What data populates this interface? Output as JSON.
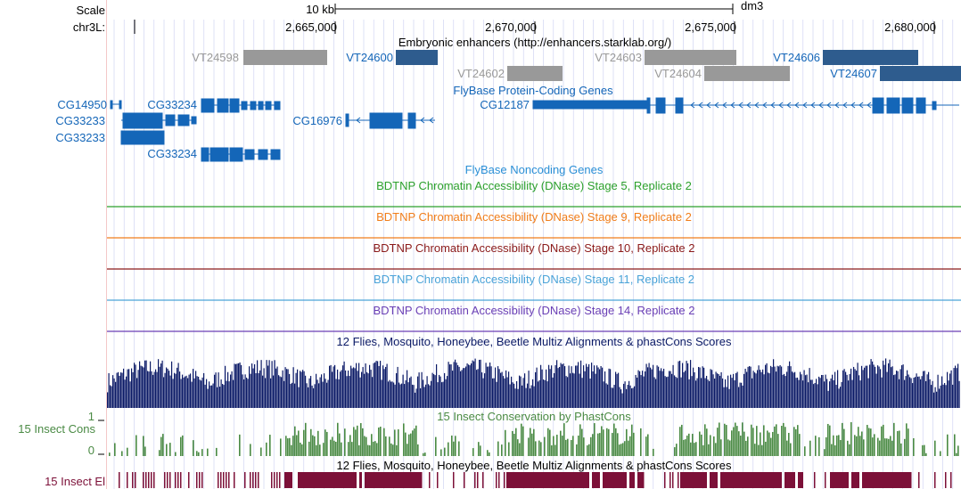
{
  "ruler": {
    "scale_label": "Scale",
    "chrom_label": "chr3L:",
    "scale_bar_text": "10 kb",
    "assembly": "dm3",
    "positions": [
      "2,665,000",
      "2,670,000",
      "2,675,000",
      "2,680,000"
    ]
  },
  "colors": {
    "gene": "#1466b8",
    "enhancer_dark": "#2e5c8e",
    "enhancer_gray": "#999999",
    "stage5": "#2ca02c",
    "stage9": "#f07d1a",
    "stage10": "#8b1a1a",
    "stage11": "#4aa3d8",
    "stage14": "#6a3fb5",
    "multiz": "#0b1a66",
    "phastcons": "#4a8a44",
    "elements": "#7c1038"
  },
  "tracks": {
    "enhancers": {
      "title": "Embryonic enhancers (http://enhancers.starklab.org/)",
      "items": [
        {
          "name": "VT24598",
          "style": "gray"
        },
        {
          "name": "VT24600",
          "style": "dark"
        },
        {
          "name": "VT24602",
          "style": "gray"
        },
        {
          "name": "VT24603",
          "style": "gray"
        },
        {
          "name": "VT24604",
          "style": "gray"
        },
        {
          "name": "VT24606",
          "style": "dark"
        },
        {
          "name": "VT24607",
          "style": "dark"
        }
      ]
    },
    "flybase_coding": {
      "title": "FlyBase Protein-Coding Genes",
      "genes": [
        "CG14950",
        "CG33234",
        "CG33233",
        "CG16976",
        "CG12187",
        "CG33233",
        "CG33234"
      ]
    },
    "flybase_noncoding": {
      "title": "FlyBase Noncoding Genes"
    },
    "dnase": [
      {
        "title": "BDTNP Chromatin Accessibility (DNase) Stage 5, Replicate 2",
        "color_key": "stage5"
      },
      {
        "title": "BDTNP Chromatin Accessibility (DNase) Stage 9, Replicate 2",
        "color_key": "stage9"
      },
      {
        "title": "BDTNP Chromatin Accessibility (DNase) Stage 10, Replicate 2",
        "color_key": "stage10"
      },
      {
        "title": "BDTNP Chromatin Accessibility (DNase) Stage 11, Replicate 2",
        "color_key": "stage11"
      },
      {
        "title": "BDTNP Chromatin Accessibility (DNase) Stage 14, Replicate 2",
        "color_key": "stage14"
      }
    ],
    "multiz": {
      "title": "12 Flies, Mosquito, Honeybee, Beetle Multiz Alignments & phastCons Scores"
    },
    "phastcons": {
      "title": "15 Insect Conservation by PhastCons",
      "side_label": "15 Insect Cons",
      "axis_max": "1",
      "axis_min": "0"
    },
    "elements": {
      "title": "12 Flies, Mosquito, Honeybee, Beetle Multiz Alignments & phastCons Scores",
      "side_label": "15 Insect El"
    }
  }
}
